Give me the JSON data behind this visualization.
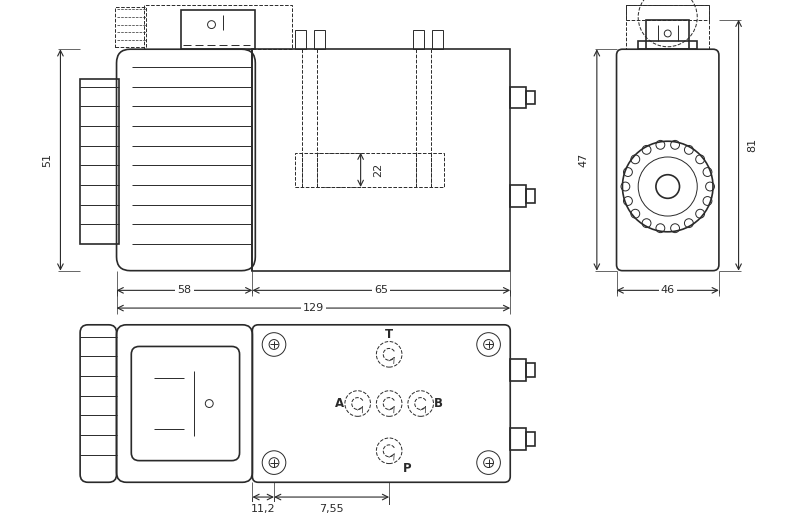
{
  "bg": "#ffffff",
  "lc": "#2a2a2a",
  "lw_main": 1.2,
  "lw_thin": 0.7,
  "lw_dim": 0.8,
  "fig_w": 8.0,
  "fig_h": 5.13,
  "dpi": 100,
  "labels": {
    "51": "51",
    "58": "58",
    "65": "65",
    "129": "129",
    "22": "22",
    "81": "81",
    "47": "47",
    "46": "46",
    "11_2": "11,2",
    "7_55": "7,55",
    "T": "T",
    "A": "A",
    "B": "B",
    "P": "P"
  }
}
